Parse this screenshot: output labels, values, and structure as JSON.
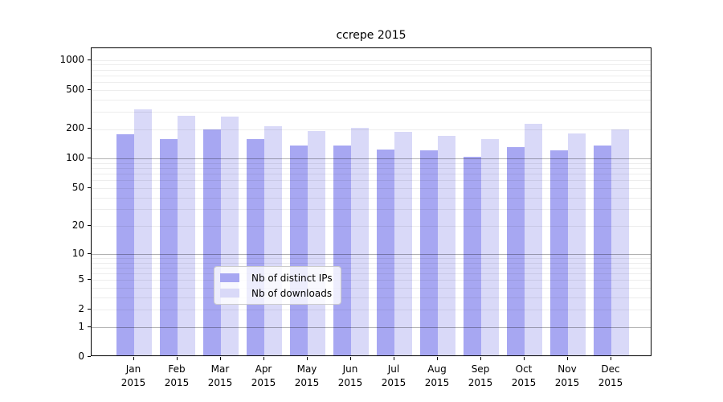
{
  "chart_data": {
    "type": "bar",
    "title": "ccrepe 2015",
    "categories": [
      "Jan",
      "Feb",
      "Mar",
      "Apr",
      "May",
      "Jun",
      "Jul",
      "Aug",
      "Sep",
      "Oct",
      "Nov",
      "Dec"
    ],
    "category_year": "2015",
    "series": [
      {
        "name": "Nb of distinct IPs",
        "color": "#a7a7f2",
        "values": [
          170,
          153,
          190,
          152,
          131,
          130,
          119,
          117,
          100,
          127,
          118,
          130
        ]
      },
      {
        "name": "Nb of downloads",
        "color": "#d9d9f8",
        "values": [
          303,
          265,
          256,
          205,
          184,
          197,
          179,
          163,
          152,
          219,
          175,
          192
        ]
      }
    ],
    "yscale": "log10(1+x)",
    "ylim": [
      0,
      1000
    ],
    "ytick_values": [
      0,
      1,
      2,
      5,
      10,
      20,
      50,
      100,
      200,
      500,
      1000
    ],
    "grid_minor_values": [
      2,
      3,
      4,
      5,
      6,
      7,
      8,
      9,
      20,
      30,
      40,
      50,
      60,
      70,
      80,
      90,
      200,
      300,
      400,
      500,
      600,
      700,
      800,
      900,
      1000
    ],
    "grid_major_values": [
      1,
      10,
      100
    ],
    "grid": "horizontal",
    "legend_position": "lower center",
    "colors": {
      "background": "#ffffff",
      "axis": "#000000",
      "text": "#000000",
      "grid_minor": "rgba(0,0,0,0.07)",
      "grid_major": "rgba(0,0,0,0.30)"
    }
  }
}
